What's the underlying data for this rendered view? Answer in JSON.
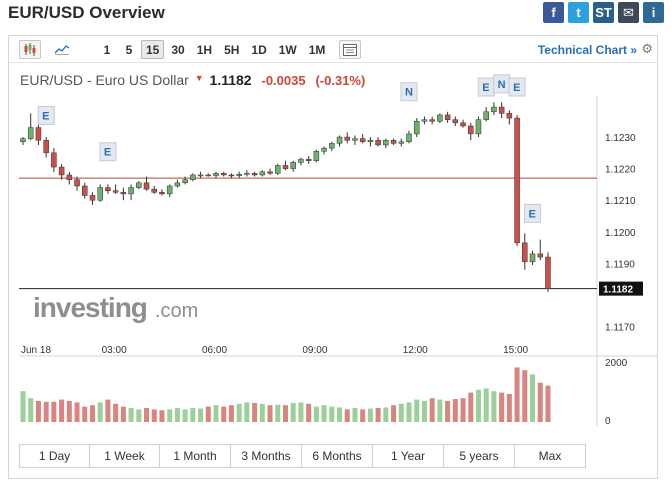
{
  "page": {
    "title": "EUR/USD Overview"
  },
  "share": [
    {
      "label": "f",
      "icon": "facebook-icon",
      "color": "#3b5998"
    },
    {
      "label": "t",
      "icon": "twitter-icon",
      "color": "#2ca1e0"
    },
    {
      "label": "ST",
      "icon": "stocktwits-icon",
      "color": "#2a5f8c"
    },
    {
      "label": "✉",
      "icon": "email-icon",
      "color": "#3d4a59"
    },
    {
      "label": "i",
      "icon": "info-icon",
      "color": "#2f6a94"
    }
  ],
  "toolbar": {
    "intervals": [
      "1",
      "5",
      "15",
      "30",
      "1H",
      "5H",
      "1D",
      "1W",
      "1M"
    ],
    "active_interval": "15",
    "technical_chart": "Technical Chart »",
    "gear_glyph": "⚙"
  },
  "quote": {
    "name": "EUR/USD - Euro US Dollar",
    "arrow": "▼",
    "price": "1.1182",
    "change": "-0.0035",
    "change_pct": "(-0.31%)",
    "down_color": "#d0443c"
  },
  "chart_data": {
    "type": "candlestick",
    "x_labels": [
      "Jun 18",
      "03:00",
      "06:00",
      "09:00",
      "12:00",
      "15:00"
    ],
    "y_ticks": [
      "1.1230",
      "1.1220",
      "1.1210",
      "1.1200",
      "1.1190",
      "1.1170"
    ],
    "y_range": [
      1.1167,
      1.1243
    ],
    "last_price": "1.1182",
    "reference_line": 1.1217,
    "watermark_brand": "investing",
    "watermark_suffix": ".com",
    "up_color": "#6bb36b",
    "down_color": "#c9504a",
    "candles": [
      [
        1.12285,
        1.123,
        1.12275,
        1.12295
      ],
      [
        1.12295,
        1.12375,
        1.1229,
        1.1233
      ],
      [
        1.1233,
        1.1234,
        1.12275,
        1.1229
      ],
      [
        1.1229,
        1.123,
        1.12235,
        1.1225
      ],
      [
        1.1225,
        1.12265,
        1.1219,
        1.12205
      ],
      [
        1.12205,
        1.12215,
        1.12165,
        1.1218
      ],
      [
        1.1218,
        1.1219,
        1.1215,
        1.12165
      ],
      [
        1.12165,
        1.12175,
        1.1213,
        1.12145
      ],
      [
        1.12145,
        1.12155,
        1.12105,
        1.12115
      ],
      [
        1.12115,
        1.12125,
        1.12085,
        1.121
      ],
      [
        1.121,
        1.1215,
        1.12095,
        1.1214
      ],
      [
        1.1214,
        1.1215,
        1.1212,
        1.1213
      ],
      [
        1.1213,
        1.1215,
        1.1212,
        1.12125
      ],
      [
        1.12125,
        1.1214,
        1.121,
        1.1212
      ],
      [
        1.1212,
        1.1215,
        1.121,
        1.1214
      ],
      [
        1.1214,
        1.1216,
        1.12135,
        1.12155
      ],
      [
        1.12155,
        1.12175,
        1.1213,
        1.12135
      ],
      [
        1.12135,
        1.12145,
        1.1212,
        1.12125
      ],
      [
        1.12125,
        1.12135,
        1.12115,
        1.1212
      ],
      [
        1.1212,
        1.1215,
        1.1211,
        1.12145
      ],
      [
        1.12145,
        1.12165,
        1.1214,
        1.12155
      ],
      [
        1.12155,
        1.12175,
        1.1215,
        1.12165
      ],
      [
        1.12165,
        1.12185,
        1.1216,
        1.1218
      ],
      [
        1.1218,
        1.1219,
        1.1217,
        1.1218
      ],
      [
        1.1218,
        1.12185,
        1.12175,
        1.12178
      ],
      [
        1.12178,
        1.1219,
        1.1217,
        1.12185
      ],
      [
        1.12185,
        1.1219,
        1.12175,
        1.1218
      ],
      [
        1.1218,
        1.12185,
        1.1217,
        1.12178
      ],
      [
        1.12178,
        1.1219,
        1.1217,
        1.12182
      ],
      [
        1.12182,
        1.12195,
        1.12175,
        1.12185
      ],
      [
        1.12185,
        1.1219,
        1.12175,
        1.1218
      ],
      [
        1.1218,
        1.12195,
        1.12175,
        1.1219
      ],
      [
        1.1219,
        1.122,
        1.1218,
        1.12185
      ],
      [
        1.12185,
        1.12215,
        1.1218,
        1.1221
      ],
      [
        1.1221,
        1.12225,
        1.12195,
        1.122
      ],
      [
        1.122,
        1.12225,
        1.1219,
        1.1222
      ],
      [
        1.1222,
        1.12235,
        1.1221,
        1.1223
      ],
      [
        1.1223,
        1.1224,
        1.12215,
        1.12225
      ],
      [
        1.12225,
        1.1226,
        1.1222,
        1.12255
      ],
      [
        1.12255,
        1.1227,
        1.12245,
        1.12265
      ],
      [
        1.12265,
        1.12285,
        1.12255,
        1.1228
      ],
      [
        1.1228,
        1.12305,
        1.1227,
        1.123
      ],
      [
        1.123,
        1.12315,
        1.1228,
        1.1229
      ],
      [
        1.1229,
        1.12305,
        1.12275,
        1.12295
      ],
      [
        1.12295,
        1.1231,
        1.1228,
        1.12285
      ],
      [
        1.12285,
        1.123,
        1.1227,
        1.1229
      ],
      [
        1.1229,
        1.123,
        1.1227,
        1.12275
      ],
      [
        1.12275,
        1.12295,
        1.12265,
        1.1229
      ],
      [
        1.1229,
        1.12295,
        1.12275,
        1.1228
      ],
      [
        1.1228,
        1.12295,
        1.1227,
        1.12285
      ],
      [
        1.12285,
        1.1232,
        1.1228,
        1.1231
      ],
      [
        1.1231,
        1.1236,
        1.123,
        1.1235
      ],
      [
        1.1235,
        1.12365,
        1.1234,
        1.12355
      ],
      [
        1.12355,
        1.12365,
        1.1234,
        1.1235
      ],
      [
        1.1235,
        1.12375,
        1.12345,
        1.1237
      ],
      [
        1.1237,
        1.1238,
        1.12345,
        1.12355
      ],
      [
        1.12355,
        1.12365,
        1.12335,
        1.12345
      ],
      [
        1.12345,
        1.12355,
        1.1233,
        1.12335
      ],
      [
        1.12335,
        1.12345,
        1.1229,
        1.1231
      ],
      [
        1.1231,
        1.12365,
        1.123,
        1.12355
      ],
      [
        1.12355,
        1.12395,
        1.1235,
        1.1238
      ],
      [
        1.1238,
        1.1241,
        1.1237,
        1.12395
      ],
      [
        1.12395,
        1.1241,
        1.1236,
        1.12375
      ],
      [
        1.12375,
        1.12385,
        1.1234,
        1.1236
      ],
      [
        1.1236,
        1.1237,
        1.11955,
        1.11965
      ],
      [
        1.11965,
        1.11995,
        1.1188,
        1.11905
      ],
      [
        1.11905,
        1.1194,
        1.11895,
        1.1193
      ],
      [
        1.1193,
        1.11975,
        1.1191,
        1.1192
      ],
      [
        1.1192,
        1.11935,
        1.1181,
        1.1182
      ]
    ],
    "volume": [
      1.1,
      0.85,
      0.75,
      0.72,
      0.72,
      0.8,
      0.75,
      0.7,
      0.55,
      0.6,
      0.7,
      0.8,
      0.65,
      0.55,
      0.5,
      0.45,
      0.5,
      0.45,
      0.42,
      0.45,
      0.5,
      0.45,
      0.5,
      0.48,
      0.55,
      0.6,
      0.55,
      0.6,
      0.65,
      0.7,
      0.68,
      0.65,
      0.6,
      0.62,
      0.6,
      0.68,
      0.7,
      0.65,
      0.55,
      0.6,
      0.55,
      0.52,
      0.45,
      0.5,
      0.45,
      0.48,
      0.5,
      0.52,
      0.6,
      0.65,
      0.7,
      0.8,
      0.75,
      0.85,
      0.8,
      0.75,
      0.82,
      0.85,
      1.05,
      1.15,
      1.2,
      1.1,
      1.05,
      1.0,
      1.95,
      1.85,
      1.7,
      1.4,
      1.3
    ],
    "volume_ticks": [
      "2000",
      "0"
    ],
    "news_markers": [
      {
        "label": "E",
        "candle": 3,
        "price": 1.1234
      },
      {
        "label": "E",
        "candle": 11,
        "price": 1.12225
      },
      {
        "label": "N",
        "candle": 50,
        "price": 1.12415
      },
      {
        "label": "E",
        "candle": 60,
        "price": 1.1243
      },
      {
        "label": "N",
        "candle": 62,
        "price": 1.1244
      },
      {
        "label": "E",
        "candle": 64,
        "price": 1.1243
      },
      {
        "label": "E",
        "candle": 66,
        "price": 1.1203
      }
    ]
  },
  "ranges": [
    "1 Day",
    "1 Week",
    "1 Month",
    "3 Months",
    "6 Months",
    "1 Year",
    "5 years",
    "Max"
  ]
}
